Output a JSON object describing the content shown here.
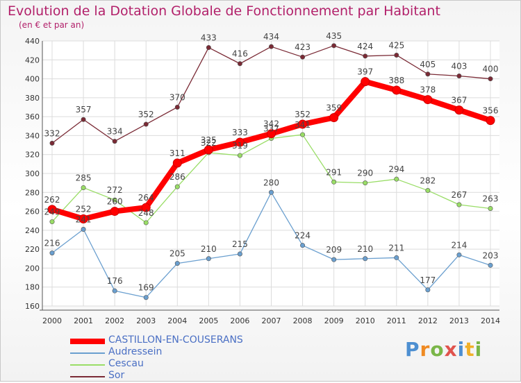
{
  "title": "Evolution de la Dotation Globale de Fonctionnement par Habitant",
  "subtitle": "(en € et par an)",
  "logo": {
    "text": "Proxiti",
    "letters": [
      "P",
      "r",
      "o",
      "x",
      "i",
      "t",
      "i"
    ]
  },
  "chart_data": {
    "type": "line",
    "title": "Evolution de la Dotation Globale de Fonctionnement par Habitant",
    "subtitle": "(en € et par an)",
    "xlabel": "",
    "ylabel": "",
    "x": [
      2000,
      2001,
      2002,
      2003,
      2004,
      2005,
      2006,
      2007,
      2008,
      2009,
      2010,
      2011,
      2012,
      2013,
      2014
    ],
    "ylim": [
      160,
      440
    ],
    "yticks": [
      160,
      180,
      200,
      220,
      240,
      260,
      280,
      300,
      320,
      340,
      360,
      380,
      400,
      420,
      440
    ],
    "grid": true,
    "legend_position": "bottom-left",
    "series": [
      {
        "name": "CASTILLON-EN-COUSERANS",
        "color": "#ff0000",
        "values": [
          262,
          252,
          260,
          264,
          311,
          325,
          333,
          342,
          352,
          359,
          397,
          388,
          378,
          367,
          356
        ]
      },
      {
        "name": "Audressein",
        "color": "#6a9fcf",
        "values": [
          216,
          241,
          176,
          169,
          205,
          210,
          215,
          280,
          224,
          209,
          210,
          211,
          177,
          214,
          203
        ]
      },
      {
        "name": "Cescau",
        "color": "#99dd66",
        "values": [
          249,
          285,
          272,
          248,
          286,
          322,
          319,
          337,
          341,
          291,
          290,
          294,
          282,
          267,
          263
        ]
      },
      {
        "name": "Sor",
        "color": "#7a2a35",
        "values": [
          332,
          357,
          334,
          352,
          370,
          433,
          416,
          434,
          423,
          435,
          424,
          425,
          405,
          403,
          400
        ]
      }
    ]
  }
}
